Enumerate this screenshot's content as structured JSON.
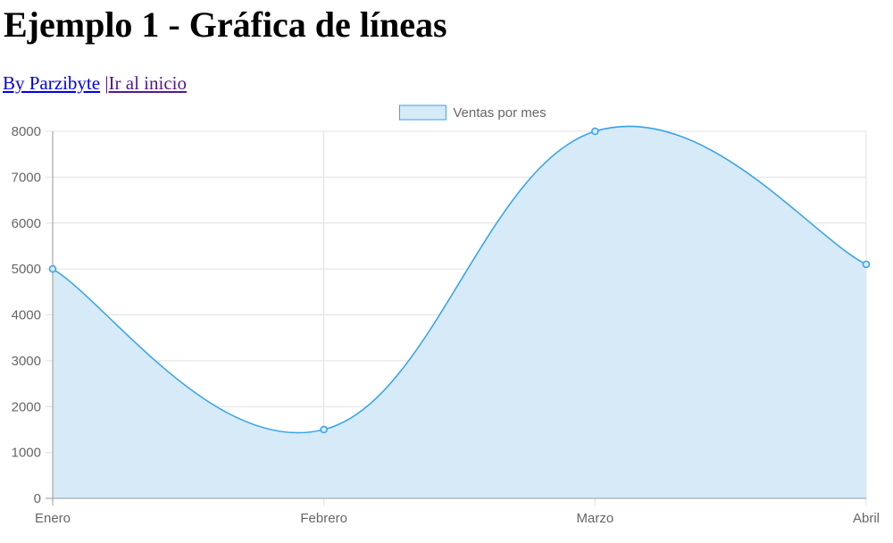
{
  "page": {
    "title": "Ejemplo 1 - Gráfica de líneas",
    "author_link": "By Parzibyte",
    "separator": "|",
    "home_link": "Ir al inicio"
  },
  "chart_data": {
    "type": "area",
    "categories": [
      "Enero",
      "Febrero",
      "Marzo",
      "Abril"
    ],
    "series": [
      {
        "name": "Ventas por mes",
        "values": [
          5000,
          1500,
          8000,
          5100
        ],
        "border_color": "#36a2eb",
        "fill_color": "#d6eaf8"
      }
    ],
    "ylim": [
      0,
      8000
    ],
    "yticks": [
      0,
      1000,
      2000,
      3000,
      4000,
      5000,
      6000,
      7000,
      8000
    ],
    "grid": true,
    "legend_position": "top",
    "curve": "smooth",
    "grid_color": "#e0e0e0",
    "axis_color": "#999999"
  }
}
